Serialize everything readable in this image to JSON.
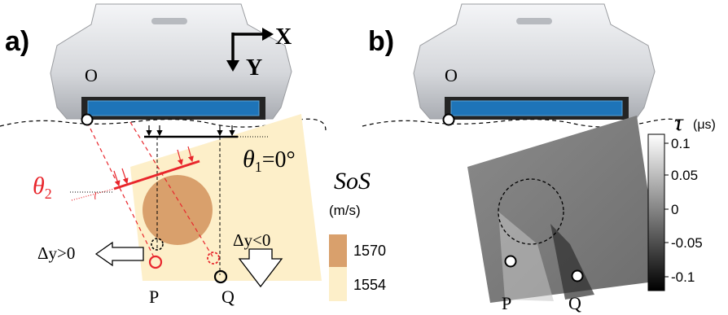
{
  "panel_a": {
    "label": "a)",
    "axis_x": "X",
    "axis_y": "Y",
    "origin": "O",
    "theta1": "θ",
    "theta1_sub": "1",
    "theta1_eq": "=0°",
    "theta2": "θ",
    "theta2_sub": "2",
    "sos_title": "SoS",
    "sos_unit": "(m/s)",
    "legend_values": [
      "1570",
      "1554"
    ],
    "dy_pos": "Δy>0",
    "dy_neg": "Δy<0",
    "point_p": "P",
    "point_q": "Q"
  },
  "panel_b": {
    "label": "b)",
    "origin": "O",
    "point_p": "P",
    "point_q": "Q",
    "colorbar_symbol": "τ",
    "colorbar_unit": "(μs)",
    "colorbar_ticks": [
      "0.1",
      "0.05",
      "0",
      "-0.05",
      "-0.1"
    ]
  },
  "colors": {
    "background_medium": "#fdefc9",
    "inclusion": "#d9a06c",
    "ray_red": "#e8262c",
    "transducer_blue": "#1e74b8",
    "probe_body": "#d8dade"
  }
}
